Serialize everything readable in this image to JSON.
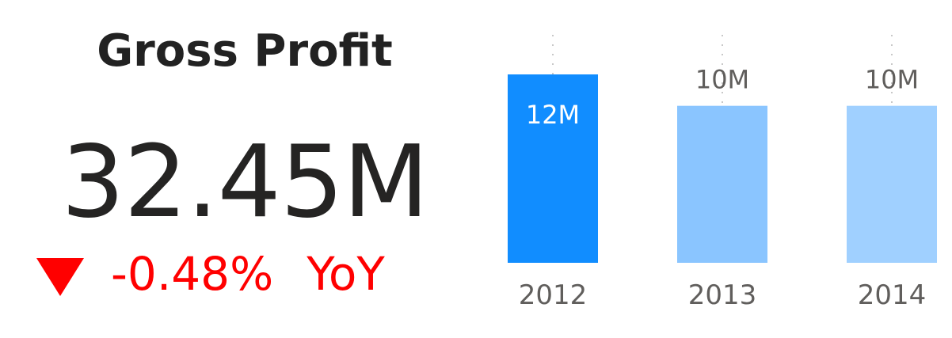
{
  "kpi": {
    "title": "Gross Profit",
    "value": "32.45M",
    "change": "-0.48%",
    "change_label": "YoY",
    "change_color": "#ff0000",
    "change_icon": "down-triangle-icon"
  },
  "chart_data": {
    "type": "bar",
    "categories": [
      "2012",
      "2013",
      "2014"
    ],
    "values": [
      12,
      10,
      10
    ],
    "data_labels": [
      "12M",
      "10M",
      "10M"
    ],
    "colors": [
      "#118dff",
      "#8ac5ff",
      "#a0d0ff"
    ],
    "ylim": [
      0,
      12
    ],
    "title": "",
    "xlabel": "",
    "ylabel": ""
  }
}
